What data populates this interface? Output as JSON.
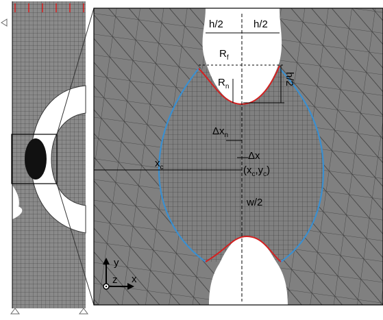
{
  "labels": {
    "h_left": "h/2",
    "h_right": "h/2",
    "r_f": {
      "main": "R",
      "sub": "f"
    },
    "r_n": {
      "main": "R",
      "sub": "n"
    },
    "h_side": "h/2",
    "dx_n": {
      "main": "Δx",
      "sub": "n"
    },
    "dx": "Δx",
    "x_c": {
      "main": "x",
      "sub": "c"
    },
    "center": {
      "parts": [
        "(x",
        "c",
        ",y",
        "c",
        ")"
      ]
    },
    "w_half": "w/2",
    "axis_y": "y",
    "axis_z": "z",
    "axis_x": "x"
  }
}
